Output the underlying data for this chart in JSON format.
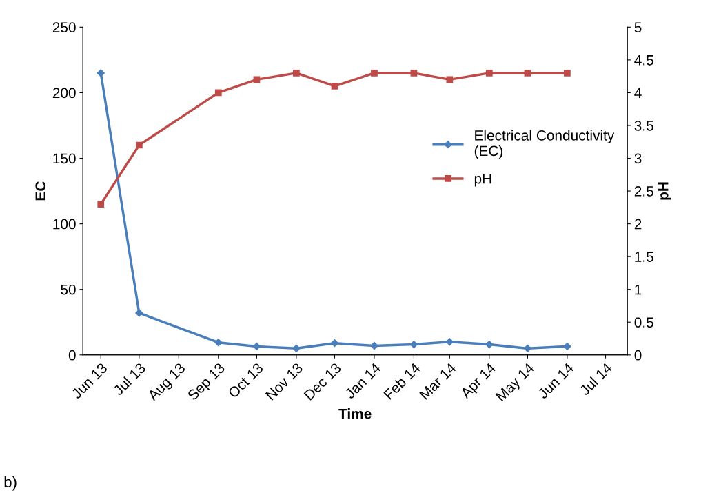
{
  "chart_data": {
    "type": "line",
    "xlabel": "Time",
    "ylabel": "EC",
    "y2label": "pH",
    "x": [
      "2013-06-15",
      "2013-07-15",
      "2013-09-15",
      "2013-10-15",
      "2013-11-15",
      "2013-12-15",
      "2014-01-15",
      "2014-02-15",
      "2014-03-15",
      "2014-04-15",
      "2014-05-15",
      "2014-06-15"
    ],
    "series": [
      {
        "name": "Electrical Conductivity (EC)",
        "color": "#4a7ebb",
        "marker": "diamond",
        "values": [
          215,
          32,
          9.5,
          6.5,
          5,
          9,
          7,
          8,
          10,
          8,
          5,
          6.5
        ]
      },
      {
        "name": "pH",
        "color": "#be4b48",
        "marker": "square",
        "axis": "y2",
        "values": [
          2.3,
          3.2,
          4.0,
          4.2,
          4.3,
          4.1,
          4.3,
          4.3,
          4.2,
          4.3,
          4.3,
          4.3
        ]
      }
    ],
    "xlim": [
      "2013-06-01",
      "2014-08-01"
    ],
    "xticks": [
      {
        "value": "2013-06-15",
        "label": "Jun 13"
      },
      {
        "value": "2013-07-15",
        "label": "Jul 13"
      },
      {
        "value": "2013-08-15",
        "label": "Aug 13"
      },
      {
        "value": "2013-09-15",
        "label": "Sep 13"
      },
      {
        "value": "2013-10-15",
        "label": "Oct 13"
      },
      {
        "value": "2013-11-15",
        "label": "Nov 13"
      },
      {
        "value": "2013-12-15",
        "label": "Dec 13"
      },
      {
        "value": "2014-01-15",
        "label": "Jan 14"
      },
      {
        "value": "2014-02-15",
        "label": "Feb 14"
      },
      {
        "value": "2014-03-15",
        "label": "Mar 14"
      },
      {
        "value": "2014-04-15",
        "label": "Apr 14"
      },
      {
        "value": "2014-05-15",
        "label": "May 14"
      },
      {
        "value": "2014-06-15",
        "label": "Jun 14"
      },
      {
        "value": "2014-07-15",
        "label": "Jul 14"
      }
    ],
    "ylim": [
      0,
      250
    ],
    "yticks": [
      0,
      50,
      100,
      150,
      200,
      250
    ],
    "y2lim": [
      0,
      5
    ],
    "y2ticks": [
      0,
      0.5,
      1,
      1.5,
      2,
      2.5,
      3,
      3.5,
      4,
      4.5,
      5
    ],
    "grid": false,
    "legend": "right",
    "line_style": "solid",
    "annotations": [
      "b)"
    ]
  }
}
